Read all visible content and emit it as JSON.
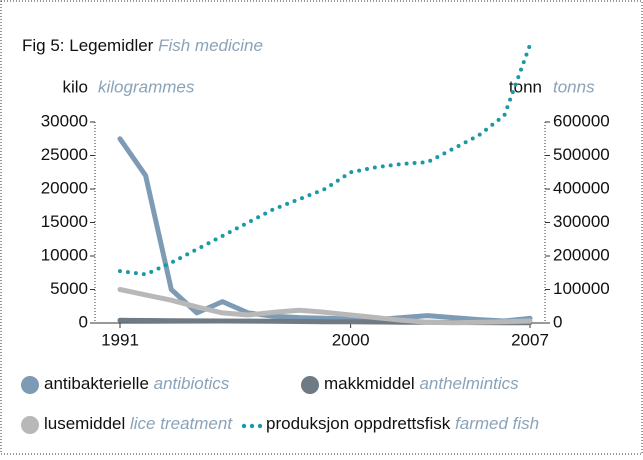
{
  "chart_data": {
    "type": "line",
    "title": "Fig 5: Legemidler",
    "title_en": "Fish medicine",
    "ylabel": "kilo",
    "ylabel_en": "kilogrammes",
    "y2label": "tonn",
    "y2label_en": "tonns",
    "x": [
      1991,
      1992,
      1993,
      1994,
      1995,
      1996,
      1997,
      1998,
      1999,
      2000,
      2001,
      2002,
      2003,
      2004,
      2005,
      2006,
      2007
    ],
    "xlim": [
      1991,
      2007
    ],
    "xticks": [
      1991,
      2000,
      2007
    ],
    "ylim": [
      0,
      30000
    ],
    "yticks": [
      0,
      5000,
      10000,
      15000,
      20000,
      25000,
      30000
    ],
    "y2lim": [
      0,
      600000
    ],
    "y2ticks": [
      0,
      100000,
      200000,
      300000,
      400000,
      500000,
      600000
    ],
    "series": [
      {
        "name": "antibakterielle",
        "name_en": "antibiotics",
        "color": "#7e9bb5",
        "values": [
          27500,
          22000,
          5000,
          1500,
          3200,
          1500,
          1000,
          800,
          700,
          600,
          500,
          800,
          1100,
          800,
          500,
          300,
          700
        ]
      },
      {
        "name": "makkmiddel",
        "name_en": "anthelmintics",
        "color": "#6e7a84",
        "values": [
          400,
          380,
          350,
          320,
          300,
          280,
          250,
          220,
          200,
          180,
          150,
          120,
          100,
          80,
          60,
          50,
          40
        ]
      },
      {
        "name": "lusemiddel",
        "name_en": "lice treatment",
        "color": "#b8b8b8",
        "values": [
          5000,
          4200,
          3400,
          2400,
          1500,
          1200,
          1600,
          1900,
          1600,
          1200,
          800,
          400,
          100,
          50,
          100,
          200,
          300
        ]
      },
      {
        "name": "produksjon oppdrettsfisk",
        "name_en": "farmed fish",
        "color": "#1a9aa8",
        "axis": "y2",
        "dotted": true,
        "values": [
          155000,
          145000,
          180000,
          220000,
          260000,
          300000,
          340000,
          370000,
          400000,
          450000,
          465000,
          475000,
          480000,
          520000,
          560000,
          620000,
          830000
        ]
      }
    ]
  }
}
